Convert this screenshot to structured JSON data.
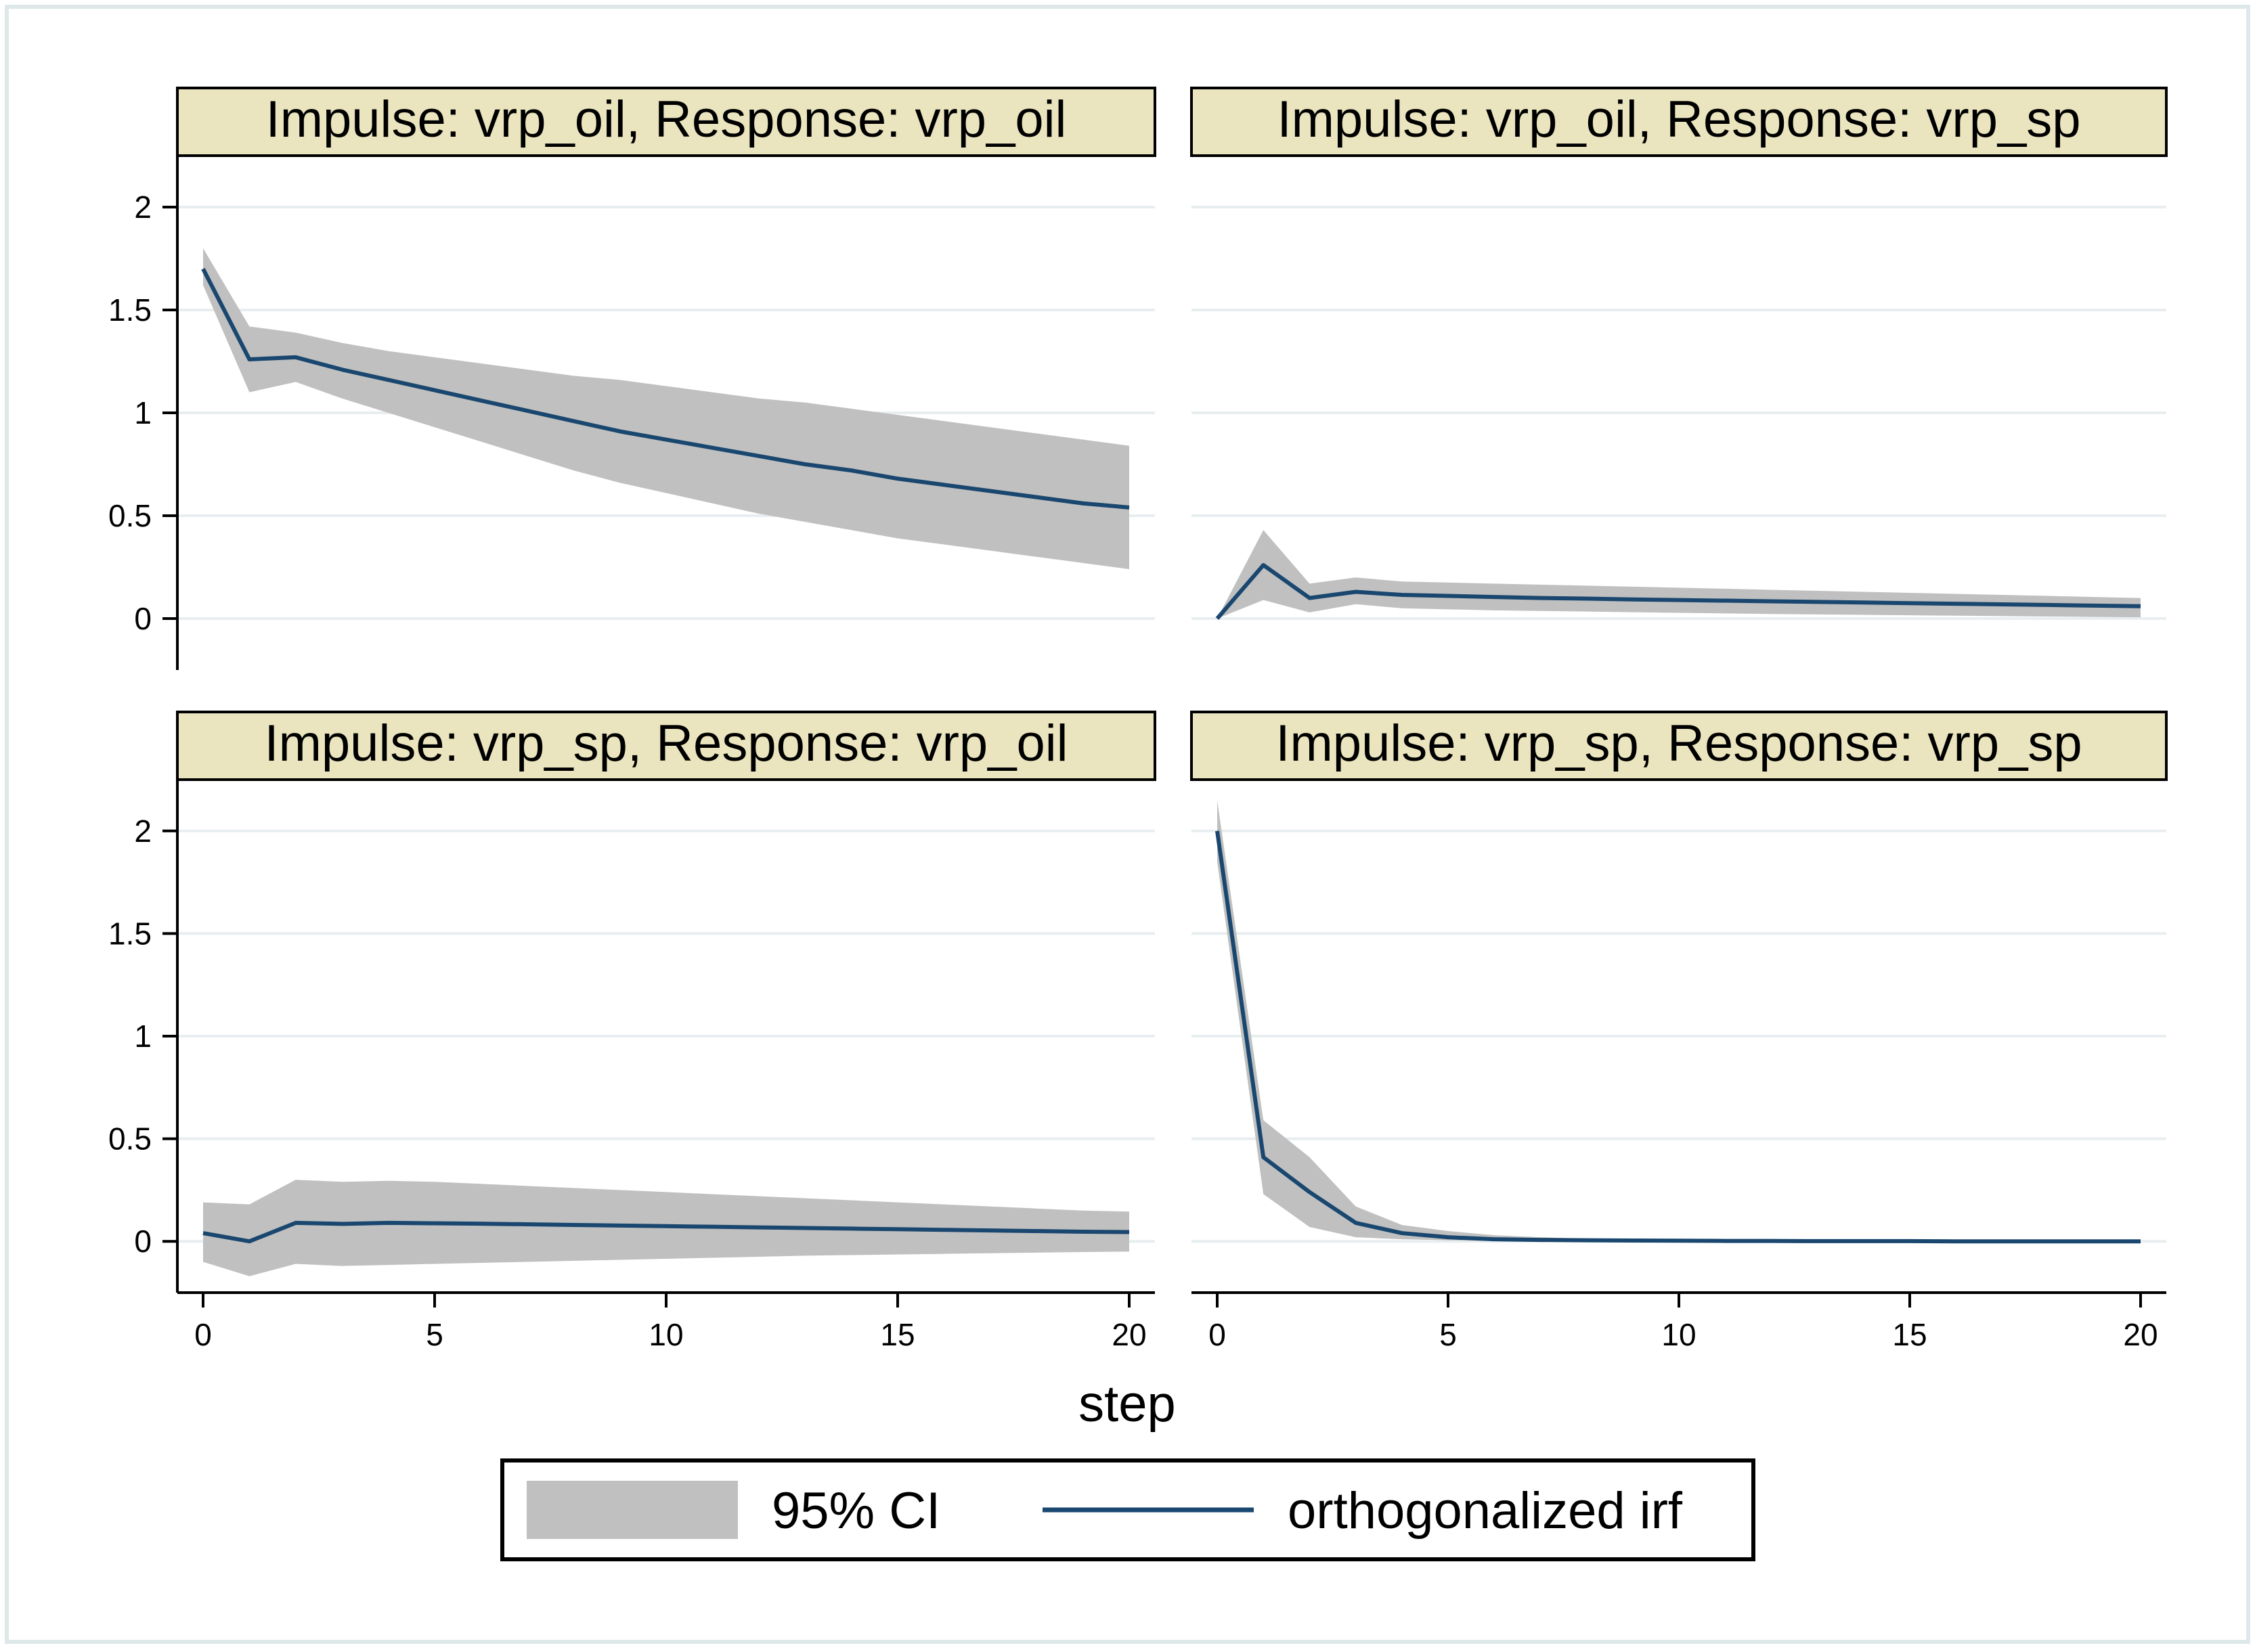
{
  "chart_data": {
    "type": "line",
    "layout": "2x2 grid of panels",
    "x_axis_label": "step",
    "xlim": [
      0,
      20
    ],
    "ylim": [
      -0.25,
      2.25
    ],
    "x_ticks": [
      0,
      5,
      10,
      15,
      20
    ],
    "x_tick_labels": [
      "0",
      "5",
      "10",
      "15",
      "20"
    ],
    "y_ticks": [
      0,
      0.5,
      1,
      1.5,
      2
    ],
    "y_tick_labels": [
      "0",
      "0.5",
      "1",
      "1.5",
      "2"
    ],
    "grid": true,
    "legend": {
      "placement": "bottom",
      "entries": [
        {
          "label": "95% CI",
          "kind": "area"
        },
        {
          "label": "orthogonalized irf",
          "kind": "line"
        }
      ]
    },
    "colors": {
      "ci": "#c0c0c0",
      "irf": "#1a476f",
      "title_bg": "#eae5be",
      "grid": "#e8eef0",
      "frame": "#dfe8e8"
    },
    "panels": [
      {
        "title": "Impulse: vrp_oil, Response: vrp_oil",
        "x": [
          0,
          1,
          2,
          3,
          4,
          5,
          6,
          7,
          8,
          9,
          10,
          11,
          12,
          13,
          14,
          15,
          16,
          17,
          18,
          19,
          20
        ],
        "irf": [
          1.7,
          1.26,
          1.27,
          1.21,
          1.16,
          1.11,
          1.06,
          1.01,
          0.96,
          0.91,
          0.87,
          0.83,
          0.79,
          0.75,
          0.72,
          0.68,
          0.65,
          0.62,
          0.59,
          0.56,
          0.54
        ],
        "lower": [
          1.62,
          1.1,
          1.15,
          1.07,
          1.0,
          0.93,
          0.86,
          0.79,
          0.72,
          0.66,
          0.61,
          0.56,
          0.51,
          0.47,
          0.43,
          0.39,
          0.36,
          0.33,
          0.3,
          0.27,
          0.24
        ],
        "upper": [
          1.8,
          1.42,
          1.39,
          1.34,
          1.3,
          1.27,
          1.24,
          1.21,
          1.18,
          1.16,
          1.13,
          1.1,
          1.07,
          1.05,
          1.02,
          0.99,
          0.96,
          0.93,
          0.9,
          0.87,
          0.84
        ]
      },
      {
        "title": "Impulse: vrp_oil, Response: vrp_sp",
        "x": [
          0,
          1,
          2,
          3,
          4,
          5,
          6,
          7,
          8,
          9,
          10,
          11,
          12,
          13,
          14,
          15,
          16,
          17,
          18,
          19,
          20
        ],
        "irf": [
          0.0,
          0.26,
          0.1,
          0.13,
          0.115,
          0.11,
          0.105,
          0.1,
          0.097,
          0.093,
          0.09,
          0.087,
          0.084,
          0.081,
          0.078,
          0.075,
          0.072,
          0.069,
          0.066,
          0.063,
          0.06
        ],
        "lower": [
          0.0,
          0.09,
          0.03,
          0.07,
          0.05,
          0.045,
          0.04,
          0.037,
          0.034,
          0.031,
          0.028,
          0.025,
          0.022,
          0.02,
          0.018,
          0.016,
          0.014,
          0.012,
          0.01,
          0.008,
          0.006
        ],
        "upper": [
          0.0,
          0.43,
          0.17,
          0.2,
          0.18,
          0.175,
          0.17,
          0.165,
          0.16,
          0.155,
          0.15,
          0.145,
          0.14,
          0.135,
          0.13,
          0.125,
          0.12,
          0.115,
          0.11,
          0.105,
          0.1
        ]
      },
      {
        "title": "Impulse: vrp_sp, Response: vrp_oil",
        "x": [
          0,
          1,
          2,
          3,
          4,
          5,
          6,
          7,
          8,
          9,
          10,
          11,
          12,
          13,
          14,
          15,
          16,
          17,
          18,
          19,
          20
        ],
        "irf": [
          0.04,
          0.0,
          0.09,
          0.085,
          0.09,
          0.088,
          0.086,
          0.083,
          0.08,
          0.077,
          0.074,
          0.071,
          0.068,
          0.065,
          0.062,
          0.059,
          0.056,
          0.053,
          0.05,
          0.047,
          0.045
        ],
        "lower": [
          -0.1,
          -0.17,
          -0.11,
          -0.12,
          -0.115,
          -0.11,
          -0.105,
          -0.1,
          -0.095,
          -0.09,
          -0.085,
          -0.08,
          -0.075,
          -0.07,
          -0.067,
          -0.064,
          -0.061,
          -0.058,
          -0.055,
          -0.052,
          -0.05
        ],
        "upper": [
          0.19,
          0.18,
          0.3,
          0.29,
          0.295,
          0.29,
          0.28,
          0.27,
          0.26,
          0.25,
          0.24,
          0.23,
          0.22,
          0.21,
          0.2,
          0.19,
          0.18,
          0.17,
          0.16,
          0.15,
          0.145
        ]
      },
      {
        "title": "Impulse: vrp_sp, Response: vrp_sp",
        "x": [
          0,
          1,
          2,
          3,
          4,
          5,
          6,
          7,
          8,
          9,
          10,
          11,
          12,
          13,
          14,
          15,
          16,
          17,
          18,
          19,
          20
        ],
        "irf": [
          2.0,
          0.41,
          0.24,
          0.09,
          0.04,
          0.02,
          0.01,
          0.007,
          0.005,
          0.004,
          0.003,
          0.002,
          0.002,
          0.001,
          0.001,
          0.001,
          0.0,
          0.0,
          0.0,
          0.0,
          0.0
        ],
        "lower": [
          1.85,
          0.23,
          0.07,
          0.02,
          0.01,
          0.005,
          0.002,
          0.001,
          0.0,
          0.0,
          0.0,
          0.0,
          0.0,
          0.0,
          0.0,
          0.0,
          0.0,
          0.0,
          0.0,
          0.0,
          0.0
        ],
        "upper": [
          2.15,
          0.59,
          0.41,
          0.17,
          0.08,
          0.05,
          0.03,
          0.02,
          0.012,
          0.01,
          0.008,
          0.006,
          0.005,
          0.004,
          0.003,
          0.002,
          0.002,
          0.001,
          0.001,
          0.001,
          0.001
        ]
      }
    ]
  }
}
